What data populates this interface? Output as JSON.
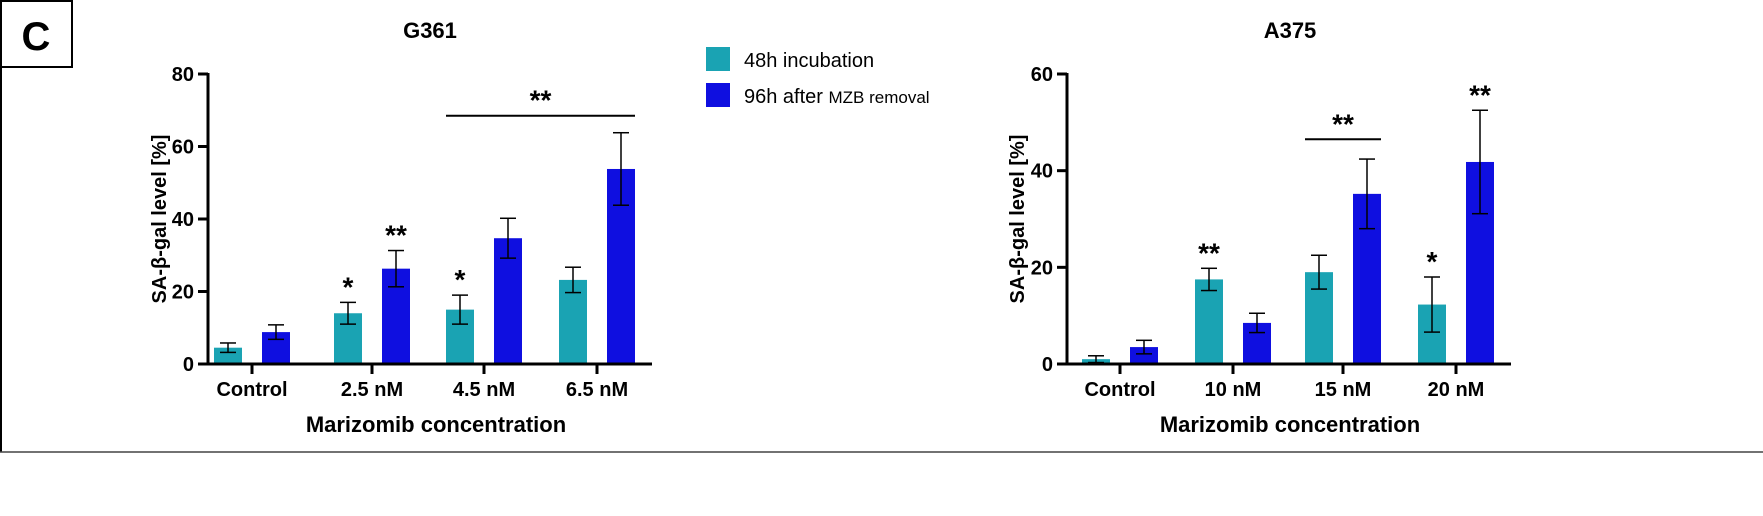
{
  "panel_label": "C",
  "legend": {
    "items": [
      {
        "label": "48h incubation",
        "color": "#1aa3b3"
      },
      {
        "label_main": "96h after ",
        "label_small": "MZB removal",
        "color": "#0f0fe0"
      }
    ]
  },
  "chart_data": [
    {
      "type": "bar",
      "title": "G361",
      "xlabel": "Marizomib concentration",
      "ylabel": "SA-β-gal level [%]",
      "categories": [
        "Control",
        "2.5 nM",
        "4.5 nM",
        "6.5 nM"
      ],
      "ylim": [
        0,
        80
      ],
      "yticks": [
        0,
        20,
        40,
        60,
        80
      ],
      "series": [
        {
          "name": "48h incubation",
          "color": "#1aa3b3",
          "values": [
            4.5,
            14,
            15,
            23.2
          ],
          "errors": [
            1.3,
            3,
            4,
            3.5
          ]
        },
        {
          "name": "96h after MZB removal",
          "color": "#0f0fe0",
          "values": [
            8.8,
            26.3,
            34.7,
            53.8
          ],
          "errors": [
            2,
            5,
            5.5,
            10
          ]
        }
      ],
      "annotations": [
        {
          "text": "*",
          "category": 1,
          "series": 0
        },
        {
          "text": "**",
          "category": 1,
          "series": 1
        },
        {
          "text": "*",
          "category": 2,
          "series": 0
        },
        {
          "text": "**",
          "span": [
            2,
            3
          ],
          "y": 68.5
        }
      ]
    },
    {
      "type": "bar",
      "title": "A375",
      "xlabel": "Marizomib concentration",
      "ylabel": "SA-β-gal level [%]",
      "categories": [
        "Control",
        "10 nM",
        "15 nM",
        "20 nM"
      ],
      "ylim": [
        0,
        60
      ],
      "yticks": [
        0,
        20,
        40,
        60
      ],
      "series": [
        {
          "name": "48h incubation",
          "color": "#1aa3b3",
          "values": [
            1,
            17.5,
            19,
            12.3
          ],
          "errors": [
            0.7,
            2.3,
            3.5,
            5.7
          ]
        },
        {
          "name": "96h after MZB removal",
          "color": "#0f0fe0",
          "values": [
            3.5,
            8.5,
            35.2,
            41.8
          ],
          "errors": [
            1.4,
            2,
            7.2,
            10.7
          ]
        }
      ],
      "annotations": [
        {
          "text": "**",
          "category": 1,
          "series": 0
        },
        {
          "text": "*",
          "category": 3,
          "series": 0
        },
        {
          "text": "**",
          "category": 3,
          "series": 1
        },
        {
          "text": "**",
          "span": [
            2,
            2
          ],
          "y": 46.5
        }
      ]
    }
  ]
}
